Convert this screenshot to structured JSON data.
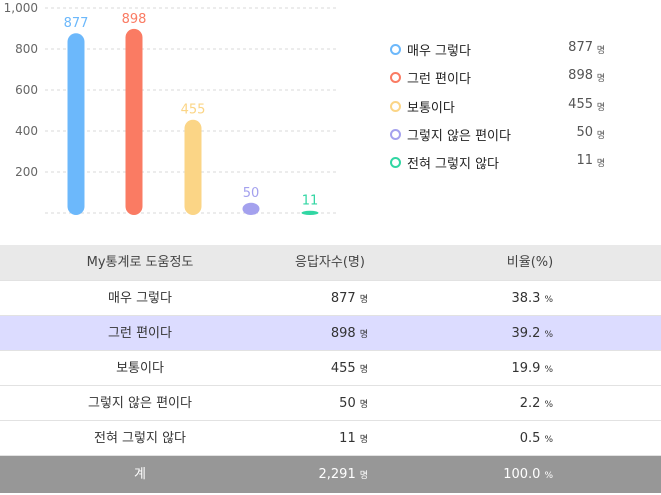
{
  "chart_data": {
    "type": "bar",
    "categories": [
      "매우 그렇다",
      "그런 편이다",
      "보통이다",
      "그렇지 않은 편이다",
      "전혀 그렇지 않다"
    ],
    "values": [
      877,
      898,
      455,
      50,
      11
    ],
    "colors": [
      "#6cb8fb",
      "#fa7b63",
      "#fbd586",
      "#a4a1ee",
      "#31d6a3"
    ],
    "ylim": [
      0,
      1000
    ],
    "yticks": [
      "200",
      "400",
      "600",
      "800",
      "1,000"
    ],
    "grid": true,
    "legend": "right"
  },
  "legend": {
    "items": [
      {
        "label": "매우 그렇다",
        "value": "877",
        "unit": "명"
      },
      {
        "label": "그런 편이다",
        "value": "898",
        "unit": "명"
      },
      {
        "label": "보통이다",
        "value": "455",
        "unit": "명"
      },
      {
        "label": "그렇지 않은 편이다",
        "value": "50",
        "unit": "명"
      },
      {
        "label": "전혀 그렇지 않다",
        "value": "11",
        "unit": "명"
      }
    ]
  },
  "table": {
    "headers": [
      "My통계로 도움정도",
      "응답자수(명)",
      "비율(%)"
    ],
    "rows": [
      {
        "label": "매우 그렇다",
        "count": "877",
        "count_unit": "명",
        "ratio": "38.3",
        "ratio_unit": "%"
      },
      {
        "label": "그런 편이다",
        "count": "898",
        "count_unit": "명",
        "ratio": "39.2",
        "ratio_unit": "%"
      },
      {
        "label": "보통이다",
        "count": "455",
        "count_unit": "명",
        "ratio": "19.9",
        "ratio_unit": "%"
      },
      {
        "label": "그렇지 않은 편이다",
        "count": "50",
        "count_unit": "명",
        "ratio": "2.2",
        "ratio_unit": "%"
      },
      {
        "label": "전혀 그렇지 않다",
        "count": "11",
        "count_unit": "명",
        "ratio": "0.5",
        "ratio_unit": "%"
      }
    ],
    "total": {
      "label": "계",
      "count": "2,291",
      "count_unit": "명",
      "ratio": "100.0",
      "ratio_unit": "%"
    }
  }
}
